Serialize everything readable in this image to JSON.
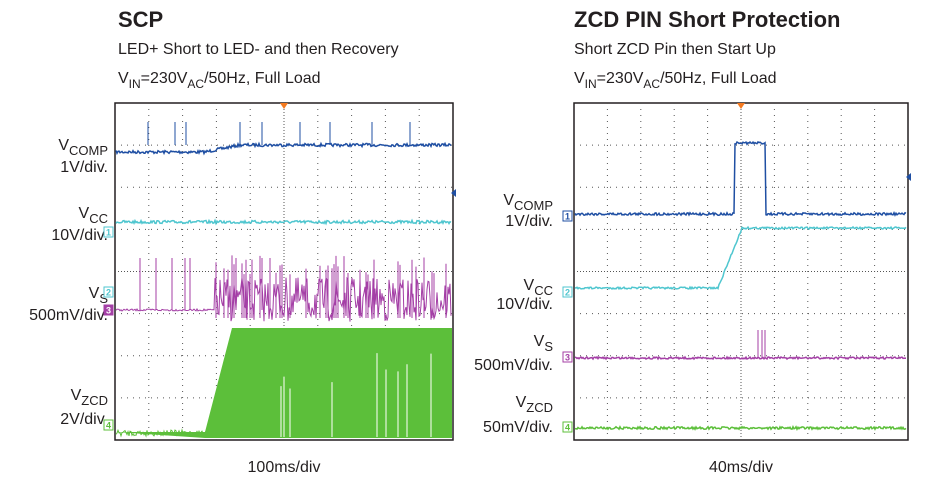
{
  "panels": [
    {
      "title": "SCP",
      "subtitle": "LED+ Short to LED- and then Recovery",
      "condition": [
        "V",
        "IN",
        "=230V",
        "AC",
        "/50Hz, Full Load"
      ],
      "channels": [
        {
          "name": "V",
          "sub": "COMP",
          "scale": "1V/div."
        },
        {
          "name": "V",
          "sub": "CC",
          "scale": "10V/div."
        },
        {
          "name": "V",
          "sub": "S",
          "scale": "500mV/div."
        },
        {
          "name": "V",
          "sub": "ZCD",
          "scale": "2V/div."
        }
      ],
      "markers": [
        "1",
        "2",
        "3",
        "4"
      ],
      "timebase": "100ms/div"
    },
    {
      "title": "ZCD PIN Short Protection",
      "subtitle": "Short ZCD Pin then Start Up",
      "condition": [
        "V",
        "IN",
        "=230V",
        "AC",
        "/50Hz, Full Load"
      ],
      "channels": [
        {
          "name": "V",
          "sub": "COMP",
          "scale": "1V/div."
        },
        {
          "name": "V",
          "sub": "CC",
          "scale": "10V/div."
        },
        {
          "name": "V",
          "sub": "S",
          "scale": "500mV/div."
        },
        {
          "name": "V",
          "sub": "ZCD",
          "scale": "50mV/div."
        }
      ],
      "markers": [
        "1",
        "2",
        "3",
        "4"
      ],
      "timebase": "40ms/div"
    }
  ]
}
